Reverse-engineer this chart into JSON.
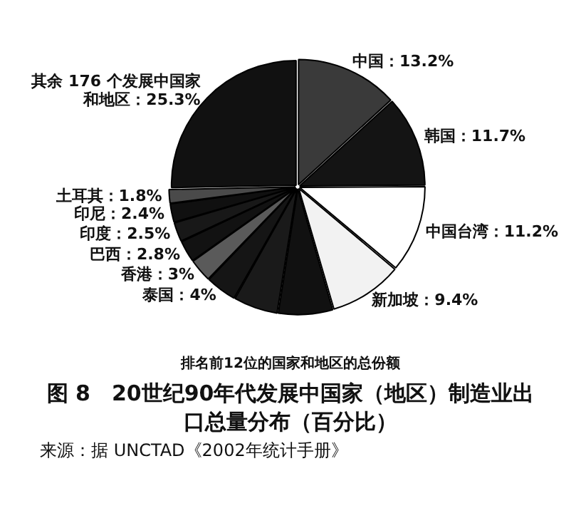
{
  "chart_data": {
    "type": "pie",
    "title": "图 8　20世纪90年代发展中国家（地区）制造业出口总量分布（百分比）",
    "categories": [
      "中国",
      "韩国",
      "中国台湾",
      "新加坡",
      null,
      null,
      "泰国",
      "香港",
      "巴西",
      "印度",
      "印尼",
      "土耳其",
      "其余 176 个发展中国家和地区"
    ],
    "values": [
      13.2,
      11.7,
      11.2,
      9.4,
      7.0,
      5.7,
      4,
      3,
      2.8,
      2.5,
      2.4,
      1.8,
      25.3
    ],
    "value_labels": [
      "13.2%",
      "11.7%",
      "11.2%",
      "9.4%",
      null,
      null,
      "4%",
      "3%",
      "2.8%",
      "2.5%",
      "2.4%",
      "1.8%",
      "25.3%"
    ],
    "colors": [
      "#3a3a3a",
      "#141414",
      "#ffffff",
      "#f2f2f2",
      "#111111",
      "#1a1a1a",
      "#151515",
      "#5a5a5a",
      "#121212",
      "#181818",
      "#101010",
      "#4a4a4a",
      "#111111"
    ],
    "legend": false,
    "annotations": [
      "排名前12位的国家和地区的总份额",
      "来源：据 UNCTAD《2002年统计手册》"
    ]
  }
}
